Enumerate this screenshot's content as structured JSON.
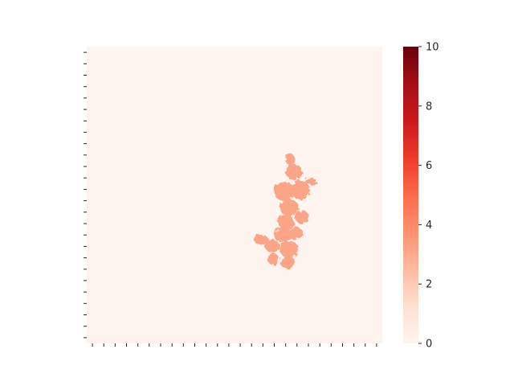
{
  "chart_data": {
    "type": "heatmap",
    "title": "",
    "xlabel": "",
    "ylabel": "",
    "colormap": "Reds",
    "colors": {
      "low": "#fff5f0",
      "mid": "#fc9272",
      "high": "#67000d",
      "blob": "#fca486"
    },
    "background_value": 0,
    "region_value": 3,
    "region_shape": "irregular connected cluster right of centre",
    "colorbar": {
      "vmin": 0,
      "vmax": 10,
      "ticks": [
        {
          "value": 0,
          "label": "0"
        },
        {
          "value": 2,
          "label": "2"
        },
        {
          "value": 4,
          "label": "4"
        },
        {
          "value": 6,
          "label": "6"
        },
        {
          "value": 8,
          "label": "8"
        },
        {
          "value": 10,
          "label": "10"
        }
      ]
    },
    "x_tick_count": 26,
    "y_tick_count": 26,
    "tick_labels_shown": false
  }
}
